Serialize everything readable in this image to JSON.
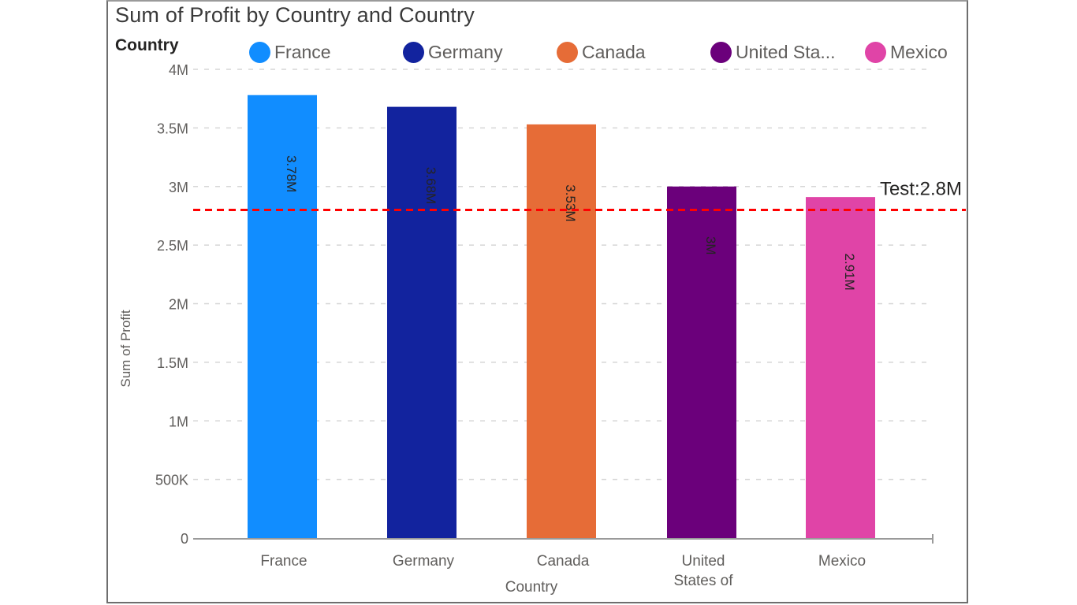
{
  "visual": {
    "title": "Sum of Profit by Country and Country",
    "legend_title": "Country"
  },
  "reference_line": {
    "label": "Test:2.8M",
    "value": 2800000,
    "color": "#ff0000"
  },
  "chart_data": {
    "type": "bar",
    "title": "Sum of Profit by Country and Country",
    "xlabel": "Country",
    "ylabel": "Sum of Profit",
    "categories": [
      "France",
      "Germany",
      "Canada",
      "United States of America",
      "Mexico"
    ],
    "category_tick_labels": [
      [
        "France"
      ],
      [
        "Germany"
      ],
      [
        "Canada"
      ],
      [
        "United",
        "States of"
      ],
      [
        "Mexico"
      ]
    ],
    "values": [
      3780000,
      3680000,
      3530000,
      3000000,
      2910000
    ],
    "data_labels": [
      "3.78M",
      "3.68M",
      "3.53M",
      "3M",
      "2.91M"
    ],
    "colors": [
      "#118dff",
      "#12239e",
      "#e66c37",
      "#6b007b",
      "#e044a7"
    ],
    "legend": [
      "France",
      "Germany",
      "Canada",
      "United Sta...",
      "Mexico"
    ],
    "legend_position": "top",
    "ylim": [
      0,
      4000000
    ],
    "yticks": [
      0,
      500000,
      1000000,
      1500000,
      2000000,
      2500000,
      3000000,
      3500000,
      4000000
    ],
    "ytick_labels": [
      "0",
      "500K",
      "1M",
      "1.5M",
      "2M",
      "2.5M",
      "3M",
      "3.5M",
      "4M"
    ],
    "grid": true
  }
}
